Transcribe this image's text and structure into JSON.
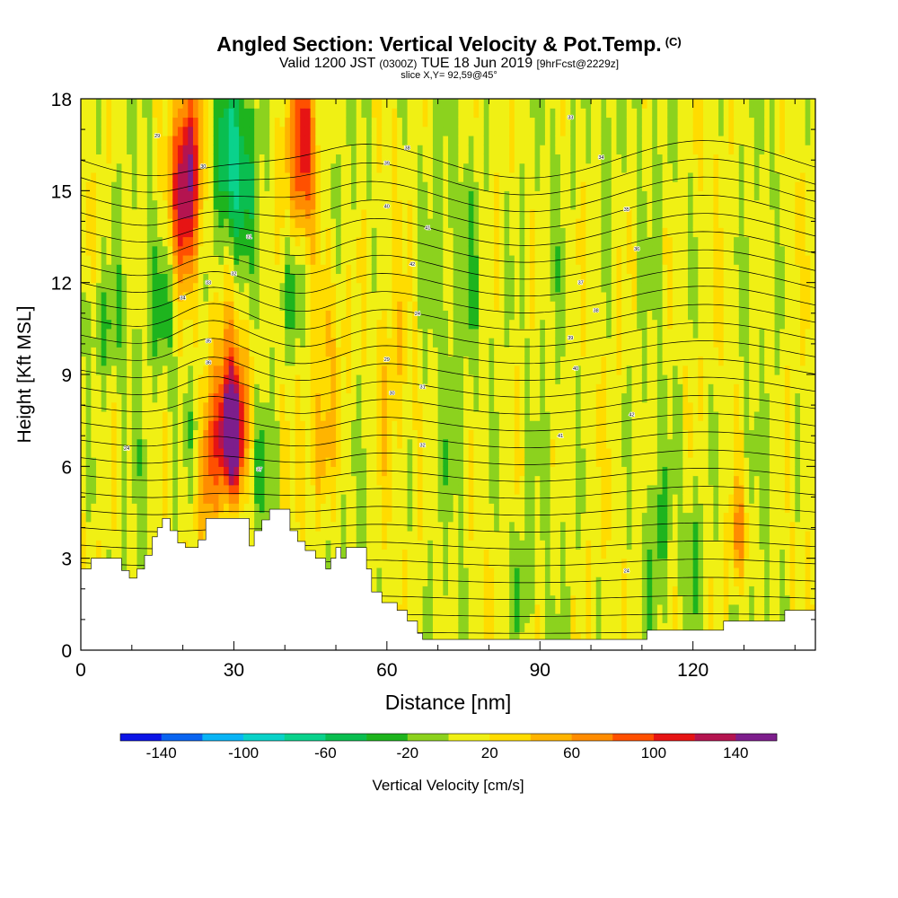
{
  "chart_data": {
    "type": "heatmap",
    "title": "Angled Section: Vertical Velocity & Pot.Temp.",
    "title_mark": "(C)",
    "subtitle_prefix": "Valid 1200 JST",
    "subtitle_utc": "(0300Z)",
    "subtitle_date": "TUE 18 Jun 2019",
    "subtitle_fcst": "[9hrFcst@2229z]",
    "slice_label": "slice X,Y= 92,59@45°",
    "xlabel": "Distance [nm]",
    "ylabel": "Height [Kft MSL]",
    "xlim": [
      0,
      144
    ],
    "ylim": [
      0,
      18
    ],
    "x_ticks": [
      "0",
      "30",
      "60",
      "90",
      "120"
    ],
    "y_ticks": [
      "0",
      "3",
      "6",
      "9",
      "12",
      "15",
      "18"
    ],
    "colorbar": {
      "label": "Vertical Velocity [cm/s]",
      "tick_labels": [
        "-140",
        "-100",
        "-60",
        "-20",
        "20",
        "60",
        "100",
        "140"
      ],
      "bins": [
        -160,
        -140,
        -120,
        -100,
        -80,
        -60,
        -40,
        -20,
        0,
        20,
        40,
        60,
        80,
        100,
        120,
        140,
        160
      ],
      "colors": [
        "#0c14e6",
        "#0a64f0",
        "#0ab4f5",
        "#0ad2c8",
        "#0ad28c",
        "#0abe50",
        "#1eb41e",
        "#8cd21e",
        "#f0f014",
        "#ffdc00",
        "#ffb400",
        "#ff8c00",
        "#ff5000",
        "#e61414",
        "#b41450",
        "#7d1e8c"
      ]
    },
    "terrain_kft": [
      [
        0,
        2.65
      ],
      [
        2,
        2.65
      ],
      [
        2,
        3.0
      ],
      [
        8,
        3.0
      ],
      [
        8,
        2.6
      ],
      [
        9.5,
        2.6
      ],
      [
        9.5,
        2.35
      ],
      [
        11,
        2.35
      ],
      [
        11,
        2.65
      ],
      [
        12.5,
        2.65
      ],
      [
        12.5,
        3.1
      ],
      [
        14,
        3.1
      ],
      [
        14,
        3.7
      ],
      [
        15,
        3.7
      ],
      [
        15,
        4.0
      ],
      [
        16,
        4.0
      ],
      [
        16,
        4.3
      ],
      [
        17.5,
        4.3
      ],
      [
        17.5,
        3.9
      ],
      [
        19,
        3.9
      ],
      [
        19,
        3.5
      ],
      [
        20.5,
        3.5
      ],
      [
        20.5,
        3.35
      ],
      [
        23,
        3.35
      ],
      [
        23,
        3.6
      ],
      [
        24.5,
        3.6
      ],
      [
        24.5,
        4.3
      ],
      [
        33,
        4.3
      ],
      [
        33,
        3.4
      ],
      [
        34,
        3.4
      ],
      [
        34,
        3.9
      ],
      [
        35.5,
        3.9
      ],
      [
        35.5,
        4.25
      ],
      [
        37,
        4.25
      ],
      [
        37,
        4.6
      ],
      [
        41,
        4.6
      ],
      [
        41,
        3.9
      ],
      [
        42.5,
        3.9
      ],
      [
        42.5,
        3.55
      ],
      [
        44,
        3.55
      ],
      [
        44,
        3.25
      ],
      [
        46,
        3.25
      ],
      [
        46,
        3.0
      ],
      [
        48,
        3.0
      ],
      [
        48,
        2.65
      ],
      [
        49,
        2.65
      ],
      [
        49,
        3.0
      ],
      [
        50,
        3.0
      ],
      [
        50,
        3.35
      ],
      [
        51,
        3.35
      ],
      [
        51,
        3.0
      ],
      [
        52,
        3.0
      ],
      [
        52,
        3.35
      ],
      [
        56,
        3.35
      ],
      [
        56,
        2.65
      ],
      [
        57,
        2.65
      ],
      [
        57,
        1.9
      ],
      [
        59,
        1.9
      ],
      [
        59,
        1.55
      ],
      [
        62,
        1.55
      ],
      [
        62,
        1.3
      ],
      [
        64,
        1.3
      ],
      [
        64,
        0.95
      ],
      [
        66,
        0.95
      ],
      [
        66,
        0.55
      ],
      [
        67,
        0.55
      ],
      [
        67,
        0.35
      ],
      [
        111,
        0.35
      ],
      [
        111,
        0.65
      ],
      [
        126,
        0.65
      ],
      [
        126,
        0.95
      ],
      [
        138,
        0.95
      ],
      [
        138,
        1.3
      ],
      [
        144,
        1.3
      ]
    ],
    "theta_levels_C": [
      25,
      26,
      27,
      28,
      29,
      30,
      31,
      32,
      33,
      34,
      35,
      36,
      37,
      38,
      39,
      40,
      41,
      42,
      43,
      44,
      45,
      46,
      47,
      48,
      49,
      50,
      51,
      52
    ],
    "theta_labels": [
      "24",
      "29",
      "30",
      "31",
      "32",
      "33",
      "34",
      "35",
      "36",
      "37",
      "38",
      "39",
      "40",
      "41",
      "42"
    ]
  }
}
